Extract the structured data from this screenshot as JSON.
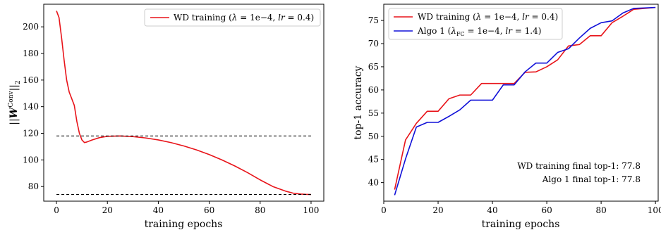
{
  "chart_data": [
    {
      "type": "line",
      "xlabel": "training epochs",
      "ylabel": "||W^Conv||_2",
      "xlim": [
        -5,
        105
      ],
      "ylim": [
        69,
        217
      ],
      "xticks": [
        0,
        20,
        40,
        60,
        80,
        100
      ],
      "yticks": [
        80,
        100,
        120,
        140,
        160,
        180,
        200
      ],
      "xtick_labels": [
        "0",
        "20",
        "40",
        "60",
        "80",
        "100"
      ],
      "ytick_labels": [
        "80",
        "100",
        "120",
        "140",
        "160",
        "180",
        "200"
      ],
      "grid": false,
      "legend_position": "top-right",
      "series": [
        {
          "name": "WD training (λ = 1e−4, lr = 0.4)",
          "color": "#e8141a",
          "style": "solid",
          "x": [
            0,
            1,
            2,
            3,
            4,
            5,
            6,
            7,
            8,
            9,
            10,
            11,
            12,
            14,
            17,
            20,
            25,
            30,
            35,
            40,
            45,
            50,
            55,
            60,
            65,
            70,
            75,
            80,
            85,
            90,
            93,
            96,
            98,
            100
          ],
          "values": [
            212,
            207,
            192,
            175,
            160,
            151,
            146,
            141,
            129,
            120,
            115,
            113,
            113.5,
            115,
            116.8,
            117.7,
            118,
            117.5,
            116.5,
            115,
            113,
            110.5,
            107.5,
            104,
            100,
            95.5,
            90.5,
            85,
            80,
            76.5,
            75,
            74.3,
            74.1,
            74
          ]
        },
        {
          "name": "",
          "color": "#000000",
          "style": "dashed",
          "x": [
            0,
            100
          ],
          "values": [
            118,
            118
          ]
        },
        {
          "name": "",
          "color": "#000000",
          "style": "dashed",
          "x": [
            0,
            100
          ],
          "values": [
            74,
            74
          ]
        }
      ]
    },
    {
      "type": "line",
      "xlabel": "training epochs",
      "ylabel": "top-1 accuracy",
      "xlim": [
        0,
        101
      ],
      "ylim": [
        36,
        78.5
      ],
      "xticks": [
        0,
        20,
        40,
        60,
        80,
        100
      ],
      "yticks": [
        40,
        45,
        50,
        55,
        60,
        65,
        70,
        75
      ],
      "xtick_labels": [
        "0",
        "20",
        "40",
        "60",
        "80",
        "100"
      ],
      "ytick_labels": [
        "40",
        "45",
        "50",
        "55",
        "60",
        "65",
        "70",
        "75"
      ],
      "grid": false,
      "legend_position": "top-left",
      "annotations": [
        "WD training final top-1: 77.8",
        "Algo 1 final top-1: 77.8"
      ],
      "series": [
        {
          "name": "WD training (λ = 1e−4, lr = 0.4)",
          "color": "#e8141a",
          "style": "solid",
          "x": [
            4,
            8,
            12,
            16,
            20,
            24,
            28,
            32,
            36,
            40,
            44,
            48,
            52,
            56,
            60,
            64,
            68,
            72,
            76,
            80,
            84,
            88,
            92,
            96,
            100
          ],
          "values": [
            38.5,
            49.2,
            52.8,
            55.4,
            55.4,
            58.1,
            58.9,
            58.9,
            61.4,
            61.4,
            61.4,
            61.4,
            63.8,
            63.9,
            65.0,
            66.5,
            69.5,
            69.8,
            71.7,
            71.7,
            74.5,
            75.9,
            77.4,
            77.6,
            77.8
          ]
        },
        {
          "name": "Algo 1 (λ_FC = 1e−4, lr = 1.4)",
          "color": "#1010d8",
          "style": "solid",
          "x": [
            4,
            8,
            12,
            16,
            20,
            24,
            28,
            32,
            36,
            40,
            44,
            48,
            52,
            56,
            60,
            64,
            68,
            72,
            76,
            80,
            84,
            88,
            92,
            96,
            100
          ],
          "values": [
            37.3,
            45.1,
            52.0,
            53.0,
            53.0,
            54.3,
            55.7,
            57.8,
            57.8,
            57.8,
            61.1,
            61.1,
            63.9,
            65.8,
            65.8,
            68.1,
            68.9,
            71.2,
            73.3,
            74.5,
            74.9,
            76.6,
            77.6,
            77.7,
            77.8
          ]
        }
      ]
    }
  ],
  "legend_parts": {
    "wd": {
      "prefix": "WD training (",
      "lambda": "λ",
      "mid": " = 1e−4, ",
      "lr": "lr",
      "suffix": " = 0.4)"
    },
    "algo": {
      "prefix": "Algo 1 (",
      "lambda": "λ",
      "sub": "FC",
      "mid": " = 1e−4, ",
      "lr": "lr",
      "suffix": " = 1.4)"
    }
  },
  "left_ylabel_parts": {
    "bar": "||",
    "W": "W",
    "sup": "Conv",
    "end": "||",
    "sub": "2"
  }
}
